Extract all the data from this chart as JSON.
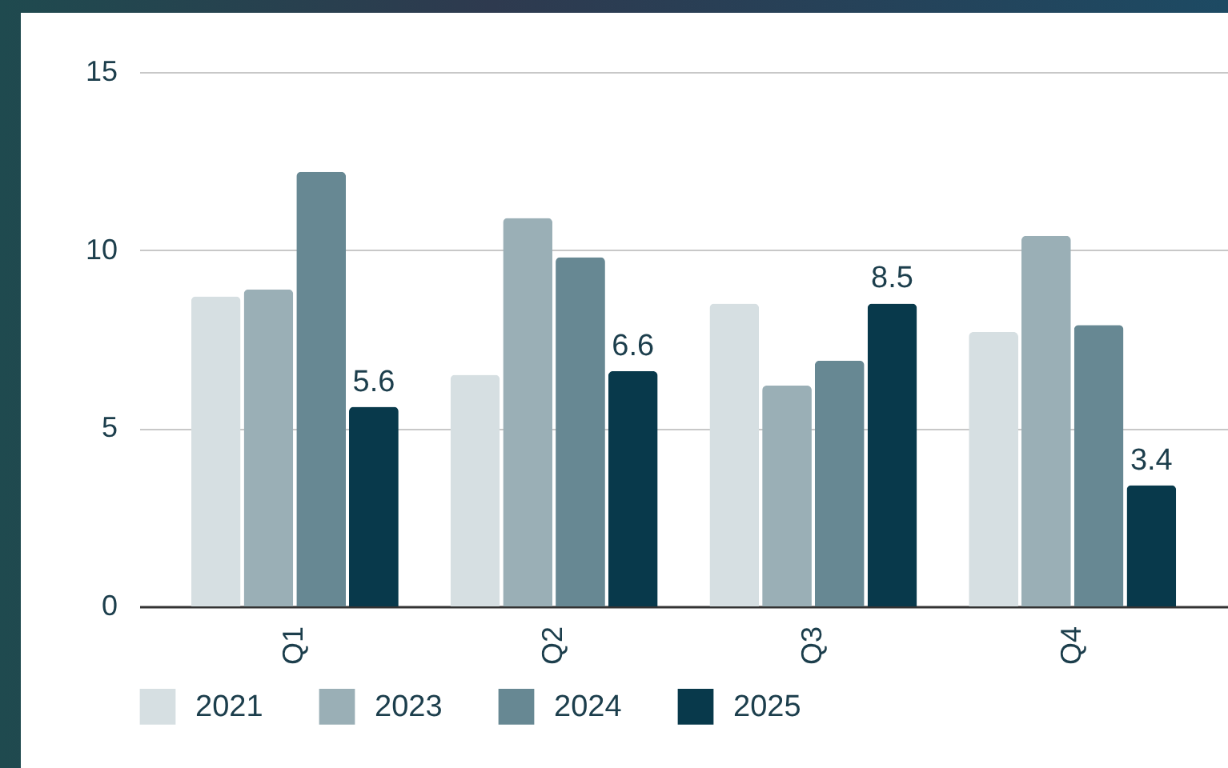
{
  "chart_data": {
    "type": "bar",
    "categories": [
      "Q1",
      "Q2",
      "Q3",
      "Q4"
    ],
    "series": [
      {
        "name": "2021",
        "color": "#d6dfe2",
        "values": [
          8.7,
          6.5,
          8.5,
          7.7
        ]
      },
      {
        "name": "2023",
        "color": "#9aafb6",
        "values": [
          8.9,
          10.9,
          6.2,
          10.4
        ]
      },
      {
        "name": "2024",
        "color": "#678893",
        "values": [
          12.2,
          9.8,
          6.9,
          7.9
        ]
      },
      {
        "name": "2025",
        "color": "#08394b",
        "values": [
          5.6,
          6.6,
          8.5,
          3.4
        ],
        "value_labels": [
          "5.6",
          "6.6",
          "8.5",
          "3.4"
        ]
      }
    ],
    "ylim": [
      0,
      15
    ],
    "yticks": [
      0,
      5,
      10,
      15
    ],
    "grid": "y",
    "legend": "bottom"
  }
}
